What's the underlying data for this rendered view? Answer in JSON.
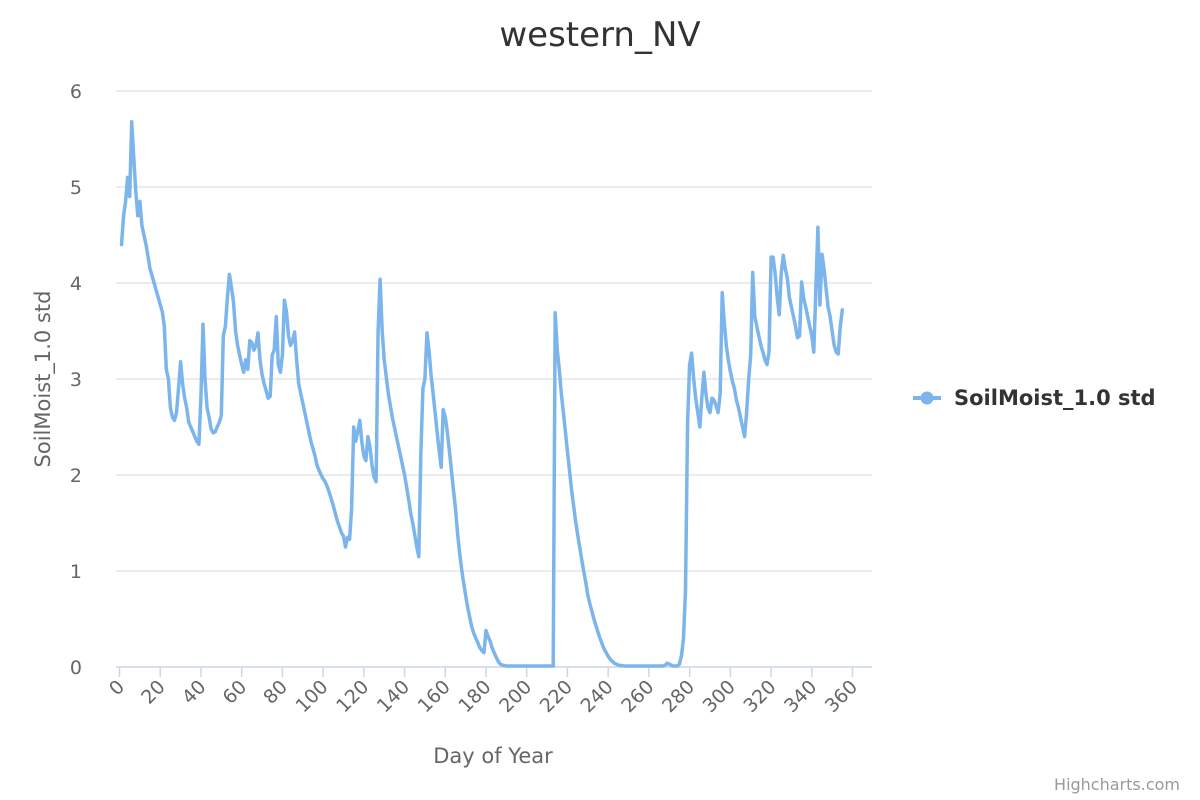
{
  "chart_data": {
    "type": "line",
    "title": "western_NV",
    "xlabel": "Day of Year",
    "ylabel": "SoilMoist_1.0 std",
    "xlim": [
      0,
      365
    ],
    "ylim": [
      0,
      6
    ],
    "x_ticks": [
      0,
      20,
      40,
      60,
      80,
      100,
      120,
      140,
      160,
      180,
      200,
      220,
      240,
      260,
      280,
      300,
      320,
      340,
      360
    ],
    "y_ticks": [
      0,
      1,
      2,
      3,
      4,
      5,
      6
    ],
    "grid": true,
    "legend_position": "right",
    "series": [
      {
        "name": "SoilMoist_1.0 std",
        "color": "#7cb5ec",
        "points": [
          [
            1,
            4.4
          ],
          [
            2,
            4.7
          ],
          [
            3,
            4.85
          ],
          [
            4,
            5.1
          ],
          [
            5,
            4.9
          ],
          [
            6,
            5.68
          ],
          [
            7,
            5.3
          ],
          [
            8,
            4.95
          ],
          [
            9,
            4.7
          ],
          [
            10,
            4.85
          ],
          [
            11,
            4.6
          ],
          [
            12,
            4.5
          ],
          [
            13,
            4.4
          ],
          [
            15,
            4.15
          ],
          [
            17,
            4.0
          ],
          [
            19,
            3.85
          ],
          [
            21,
            3.7
          ],
          [
            22,
            3.55
          ],
          [
            23,
            3.1
          ],
          [
            24,
            3.0
          ],
          [
            25,
            2.7
          ],
          [
            26,
            2.6
          ],
          [
            27,
            2.57
          ],
          [
            28,
            2.65
          ],
          [
            29,
            2.9
          ],
          [
            30,
            3.18
          ],
          [
            31,
            2.95
          ],
          [
            32,
            2.8
          ],
          [
            33,
            2.7
          ],
          [
            34,
            2.55
          ],
          [
            36,
            2.45
          ],
          [
            38,
            2.35
          ],
          [
            39,
            2.32
          ],
          [
            40,
            2.8
          ],
          [
            41,
            3.57
          ],
          [
            42,
            3.0
          ],
          [
            43,
            2.7
          ],
          [
            44,
            2.6
          ],
          [
            45,
            2.48
          ],
          [
            46,
            2.44
          ],
          [
            47,
            2.45
          ],
          [
            48,
            2.5
          ],
          [
            49,
            2.55
          ],
          [
            50,
            2.62
          ],
          [
            51,
            3.45
          ],
          [
            52,
            3.55
          ],
          [
            53,
            3.85
          ],
          [
            54,
            4.09
          ],
          [
            55,
            3.95
          ],
          [
            56,
            3.8
          ],
          [
            57,
            3.5
          ],
          [
            58,
            3.35
          ],
          [
            59,
            3.25
          ],
          [
            60,
            3.15
          ],
          [
            61,
            3.07
          ],
          [
            62,
            3.2
          ],
          [
            63,
            3.1
          ],
          [
            64,
            3.4
          ],
          [
            65,
            3.38
          ],
          [
            66,
            3.3
          ],
          [
            67,
            3.35
          ],
          [
            68,
            3.48
          ],
          [
            69,
            3.2
          ],
          [
            70,
            3.05
          ],
          [
            71,
            2.95
          ],
          [
            72,
            2.88
          ],
          [
            73,
            2.8
          ],
          [
            74,
            2.82
          ],
          [
            75,
            3.25
          ],
          [
            76,
            3.3
          ],
          [
            77,
            3.65
          ],
          [
            78,
            3.15
          ],
          [
            79,
            3.07
          ],
          [
            80,
            3.25
          ],
          [
            81,
            3.82
          ],
          [
            82,
            3.7
          ],
          [
            83,
            3.45
          ],
          [
            84,
            3.35
          ],
          [
            85,
            3.4
          ],
          [
            86,
            3.49
          ],
          [
            87,
            3.2
          ],
          [
            88,
            2.95
          ],
          [
            89,
            2.85
          ],
          [
            90,
            2.75
          ],
          [
            92,
            2.55
          ],
          [
            94,
            2.35
          ],
          [
            96,
            2.2
          ],
          [
            97,
            2.1
          ],
          [
            98,
            2.05
          ],
          [
            99,
            2.0
          ],
          [
            100,
            1.96
          ],
          [
            101,
            1.93
          ],
          [
            102,
            1.88
          ],
          [
            103,
            1.82
          ],
          [
            104,
            1.75
          ],
          [
            105,
            1.68
          ],
          [
            106,
            1.6
          ],
          [
            107,
            1.52
          ],
          [
            108,
            1.46
          ],
          [
            109,
            1.4
          ],
          [
            110,
            1.36
          ],
          [
            111,
            1.25
          ],
          [
            112,
            1.35
          ],
          [
            113,
            1.33
          ],
          [
            114,
            1.65
          ],
          [
            115,
            2.5
          ],
          [
            116,
            2.35
          ],
          [
            117,
            2.45
          ],
          [
            118,
            2.57
          ],
          [
            119,
            2.35
          ],
          [
            120,
            2.2
          ],
          [
            121,
            2.15
          ],
          [
            122,
            2.4
          ],
          [
            123,
            2.3
          ],
          [
            124,
            2.1
          ],
          [
            125,
            1.98
          ],
          [
            126,
            1.93
          ],
          [
            127,
            3.5
          ],
          [
            128,
            4.04
          ],
          [
            129,
            3.5
          ],
          [
            130,
            3.2
          ],
          [
            132,
            2.85
          ],
          [
            134,
            2.6
          ],
          [
            136,
            2.4
          ],
          [
            138,
            2.2
          ],
          [
            140,
            2.0
          ],
          [
            142,
            1.75
          ],
          [
            143,
            1.6
          ],
          [
            144,
            1.5
          ],
          [
            145,
            1.38
          ],
          [
            146,
            1.25
          ],
          [
            147,
            1.15
          ],
          [
            148,
            2.2
          ],
          [
            149,
            2.9
          ],
          [
            150,
            3.0
          ],
          [
            151,
            3.48
          ],
          [
            152,
            3.3
          ],
          [
            153,
            3.05
          ],
          [
            154,
            2.85
          ],
          [
            155,
            2.65
          ],
          [
            156,
            2.45
          ],
          [
            157,
            2.25
          ],
          [
            158,
            2.08
          ],
          [
            159,
            2.68
          ],
          [
            160,
            2.6
          ],
          [
            161,
            2.45
          ],
          [
            162,
            2.25
          ],
          [
            163,
            2.05
          ],
          [
            164,
            1.85
          ],
          [
            165,
            1.65
          ],
          [
            166,
            1.4
          ],
          [
            167,
            1.2
          ],
          [
            168,
            1.02
          ],
          [
            169,
            0.88
          ],
          [
            170,
            0.75
          ],
          [
            171,
            0.62
          ],
          [
            172,
            0.52
          ],
          [
            173,
            0.42
          ],
          [
            174,
            0.35
          ],
          [
            175,
            0.3
          ],
          [
            176,
            0.25
          ],
          [
            177,
            0.2
          ],
          [
            178,
            0.17
          ],
          [
            179,
            0.15
          ],
          [
            180,
            0.38
          ],
          [
            181,
            0.32
          ],
          [
            182,
            0.27
          ],
          [
            183,
            0.2
          ],
          [
            184,
            0.15
          ],
          [
            185,
            0.1
          ],
          [
            186,
            0.06
          ],
          [
            187,
            0.03
          ],
          [
            188,
            0.02
          ],
          [
            190,
            0.01
          ],
          [
            195,
            0.01
          ],
          [
            200,
            0.01
          ],
          [
            205,
            0.01
          ],
          [
            210,
            0.01
          ],
          [
            212,
            0.01
          ],
          [
            213,
            0.01
          ],
          [
            214,
            3.69
          ],
          [
            215,
            3.3
          ],
          [
            216,
            3.1
          ],
          [
            217,
            2.85
          ],
          [
            218,
            2.65
          ],
          [
            219,
            2.45
          ],
          [
            220,
            2.25
          ],
          [
            221,
            2.05
          ],
          [
            222,
            1.85
          ],
          [
            223,
            1.68
          ],
          [
            224,
            1.52
          ],
          [
            225,
            1.38
          ],
          [
            226,
            1.25
          ],
          [
            227,
            1.12
          ],
          [
            228,
            1.0
          ],
          [
            229,
            0.88
          ],
          [
            230,
            0.75
          ],
          [
            231,
            0.66
          ],
          [
            232,
            0.58
          ],
          [
            233,
            0.5
          ],
          [
            234,
            0.43
          ],
          [
            235,
            0.36
          ],
          [
            236,
            0.3
          ],
          [
            237,
            0.24
          ],
          [
            238,
            0.19
          ],
          [
            239,
            0.15
          ],
          [
            240,
            0.11
          ],
          [
            241,
            0.08
          ],
          [
            242,
            0.06
          ],
          [
            243,
            0.04
          ],
          [
            245,
            0.02
          ],
          [
            248,
            0.01
          ],
          [
            255,
            0.01
          ],
          [
            262,
            0.01
          ],
          [
            267,
            0.01
          ],
          [
            268,
            0.02
          ],
          [
            269,
            0.04
          ],
          [
            270,
            0.03
          ],
          [
            271,
            0.02
          ],
          [
            272,
            0.01
          ],
          [
            274,
            0.01
          ],
          [
            275,
            0.03
          ],
          [
            276,
            0.12
          ],
          [
            277,
            0.3
          ],
          [
            278,
            0.8
          ],
          [
            279,
            2.55
          ],
          [
            280,
            3.15
          ],
          [
            281,
            3.27
          ],
          [
            282,
            3.0
          ],
          [
            283,
            2.8
          ],
          [
            284,
            2.65
          ],
          [
            285,
            2.5
          ],
          [
            286,
            2.8
          ],
          [
            287,
            3.07
          ],
          [
            288,
            2.85
          ],
          [
            289,
            2.7
          ],
          [
            290,
            2.65
          ],
          [
            291,
            2.8
          ],
          [
            292,
            2.78
          ],
          [
            293,
            2.72
          ],
          [
            294,
            2.65
          ],
          [
            295,
            2.85
          ],
          [
            296,
            3.9
          ],
          [
            297,
            3.6
          ],
          [
            298,
            3.35
          ],
          [
            299,
            3.2
          ],
          [
            300,
            3.08
          ],
          [
            301,
            2.98
          ],
          [
            302,
            2.9
          ],
          [
            303,
            2.78
          ],
          [
            304,
            2.7
          ],
          [
            305,
            2.6
          ],
          [
            306,
            2.5
          ],
          [
            307,
            2.4
          ],
          [
            308,
            2.65
          ],
          [
            309,
            3.0
          ],
          [
            310,
            3.25
          ],
          [
            311,
            4.11
          ],
          [
            312,
            3.65
          ],
          [
            313,
            3.55
          ],
          [
            314,
            3.45
          ],
          [
            315,
            3.35
          ],
          [
            316,
            3.28
          ],
          [
            317,
            3.2
          ],
          [
            318,
            3.15
          ],
          [
            319,
            3.28
          ],
          [
            320,
            4.27
          ],
          [
            321,
            4.27
          ],
          [
            322,
            4.1
          ],
          [
            323,
            3.85
          ],
          [
            324,
            3.67
          ],
          [
            325,
            4.1
          ],
          [
            326,
            4.29
          ],
          [
            327,
            4.15
          ],
          [
            328,
            4.05
          ],
          [
            329,
            3.85
          ],
          [
            330,
            3.75
          ],
          [
            331,
            3.65
          ],
          [
            332,
            3.55
          ],
          [
            333,
            3.43
          ],
          [
            334,
            3.45
          ],
          [
            335,
            4.01
          ],
          [
            336,
            3.85
          ],
          [
            337,
            3.75
          ],
          [
            338,
            3.65
          ],
          [
            339,
            3.55
          ],
          [
            340,
            3.45
          ],
          [
            341,
            3.28
          ],
          [
            342,
            3.95
          ],
          [
            343,
            4.58
          ],
          [
            344,
            3.77
          ],
          [
            345,
            4.3
          ],
          [
            346,
            4.15
          ],
          [
            347,
            3.95
          ],
          [
            348,
            3.75
          ],
          [
            349,
            3.65
          ],
          [
            350,
            3.5
          ],
          [
            351,
            3.35
          ],
          [
            352,
            3.28
          ],
          [
            353,
            3.26
          ],
          [
            354,
            3.55
          ],
          [
            355,
            3.72
          ]
        ]
      }
    ]
  },
  "credits": "Highcharts.com"
}
